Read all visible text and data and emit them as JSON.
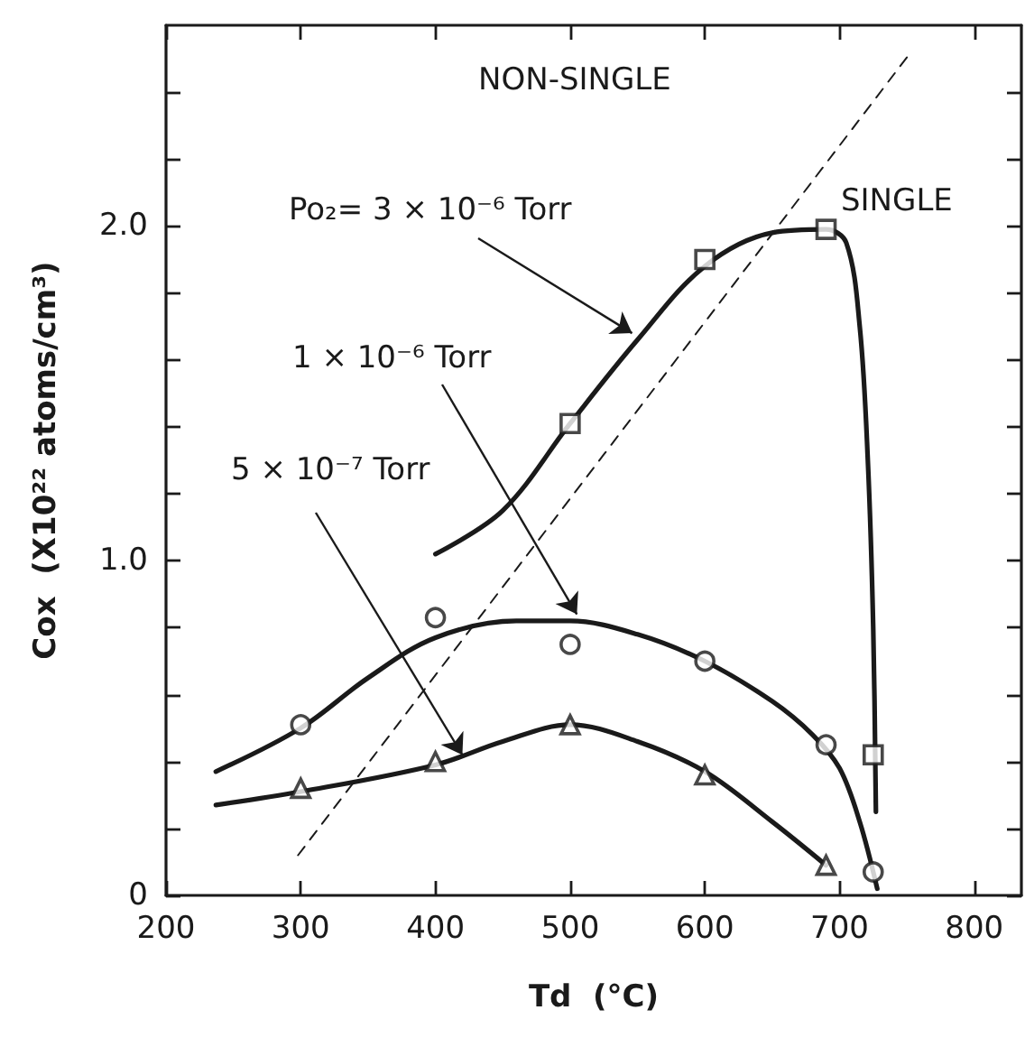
{
  "chart_data": {
    "type": "scatter",
    "xlabel": "Td  (°C)",
    "ylabel": "Cox  (X10²² atoms/cm³)",
    "xlim": [
      200,
      835
    ],
    "xticks": [
      200,
      300,
      400,
      500,
      600,
      700,
      800
    ],
    "ylim": [
      0,
      2.6
    ],
    "yticks": [
      {
        "value": 0,
        "label": "0"
      },
      {
        "value": 0.2,
        "label": null
      },
      {
        "value": 0.4,
        "label": null
      },
      {
        "value": 0.6,
        "label": null
      },
      {
        "value": 0.8,
        "label": null
      },
      {
        "value": 1.0,
        "label": "1.0"
      },
      {
        "value": 1.2,
        "label": null
      },
      {
        "value": 1.4,
        "label": null
      },
      {
        "value": 1.6,
        "label": null
      },
      {
        "value": 1.8,
        "label": null
      },
      {
        "value": 2.0,
        "label": "2.0"
      },
      {
        "value": 2.2,
        "label": null
      },
      {
        "value": 2.4,
        "label": null
      }
    ],
    "grid": false,
    "series": [
      {
        "marker": "square",
        "color": "#1a1a1a",
        "x": [
          500,
          600,
          690,
          725
        ],
        "values": [
          1.41,
          1.9,
          1.99,
          0.42
        ]
      },
      {
        "marker": "circle",
        "color": "#1a1a1a",
        "x": [
          300,
          400,
          500,
          600,
          690,
          725
        ],
        "values": [
          0.51,
          0.83,
          0.75,
          0.7,
          0.45,
          0.07
        ]
      },
      {
        "marker": "triangle",
        "color": "#1a1a1a",
        "x": [
          300,
          400,
          500,
          600,
          690
        ],
        "values": [
          0.32,
          0.4,
          0.51,
          0.36,
          0.09
        ]
      },
      {
        "type": "line",
        "marker": "none",
        "line_style": "solid",
        "color": "#1a1a1a",
        "x": [
          400,
          450,
          500,
          550,
          600,
          650,
          690,
          705,
          715,
          721,
          725,
          727
        ],
        "values": [
          1.02,
          1.15,
          1.41,
          1.66,
          1.88,
          1.98,
          1.99,
          1.95,
          1.7,
          1.3,
          0.8,
          0.25
        ]
      },
      {
        "type": "line",
        "marker": "none",
        "line_style": "solid",
        "color": "#1a1a1a",
        "x": [
          237,
          300,
          350,
          400,
          460,
          500,
          550,
          600,
          650,
          680,
          700,
          715,
          728
        ],
        "values": [
          0.37,
          0.5,
          0.65,
          0.77,
          0.82,
          0.82,
          0.78,
          0.7,
          0.58,
          0.48,
          0.38,
          0.22,
          0.02
        ]
      },
      {
        "type": "line",
        "marker": "none",
        "line_style": "solid",
        "color": "#1a1a1a",
        "x": [
          237,
          300,
          400,
          450,
          500,
          550,
          600,
          650,
          690
        ],
        "values": [
          0.27,
          0.31,
          0.39,
          0.46,
          0.51,
          0.46,
          0.37,
          0.22,
          0.09
        ]
      },
      {
        "type": "line",
        "marker": "none",
        "line_style": "dashed",
        "color": "#1a1a1a",
        "x": [
          298,
          753
        ],
        "values": [
          0.12,
          2.52
        ]
      }
    ],
    "annotations": [
      {
        "text": "Po₂= 3 × 10⁻⁶ Torr",
        "x": 546,
        "y": 1.68
      },
      {
        "text": "1 × 10⁻⁶ Torr",
        "x": 505,
        "y": 0.84
      },
      {
        "text": "5 × 10⁻⁷ Torr",
        "x": 420,
        "y": 0.42
      },
      "NON-SINGLE",
      "SINGLE"
    ]
  }
}
